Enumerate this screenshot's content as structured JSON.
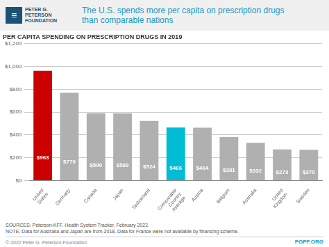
{
  "chart_data": {
    "type": "bar",
    "title": "The U.S. spends more per capita on prescription drugs\nthan comparable nations",
    "subtitle": "PER CAPITA SPENDING ON PRESCRIPTION DRUGS IN 2019",
    "categories": [
      "United\nStates",
      "Germany",
      "Canada",
      "Japan",
      "Switzerland",
      "Comparable\nCountry\nAverage",
      "Austria",
      "Belgium",
      "Australia",
      "United\nKingdom",
      "Sweden"
    ],
    "values": [
      963,
      770,
      590,
      589,
      524,
      466,
      464,
      381,
      332,
      273,
      270
    ],
    "value_labels": [
      "$963",
      "$770",
      "$590",
      "$589",
      "$524",
      "$466",
      "$464",
      "$381",
      "$332",
      "$273",
      "$270"
    ],
    "data_labels": true,
    "colors": [
      "#cc0000",
      "#b0b0b0",
      "#b0b0b0",
      "#b0b0b0",
      "#b0b0b0",
      "#00bcd4",
      "#b0b0b0",
      "#b0b0b0",
      "#b0b0b0",
      "#b0b0b0",
      "#b0b0b0"
    ],
    "ylim": [
      0,
      1200
    ],
    "yticks": [
      {
        "value": 0,
        "label": "$0"
      },
      {
        "value": 200,
        "label": "$200"
      },
      {
        "value": 400,
        "label": "$400"
      },
      {
        "value": 600,
        "label": "$600"
      },
      {
        "value": 800,
        "label": "$800"
      },
      {
        "value": 1000,
        "label": "$1,000"
      },
      {
        "value": 1200,
        "label": "$1,200"
      }
    ],
    "grid": true,
    "annotations": [
      "≡",
      "PETER G.",
      "PETERSON",
      "FOUNDATION",
      "SOURCES: Peterson-KFF, Health System Tracker, February 2022.\nNOTE: Data for Australia and Japan are from 2018. Data for France were not available by financing scheme.",
      "© 2022 Peter G. Peterson Foundation",
      "PGPF.ORG"
    ]
  }
}
